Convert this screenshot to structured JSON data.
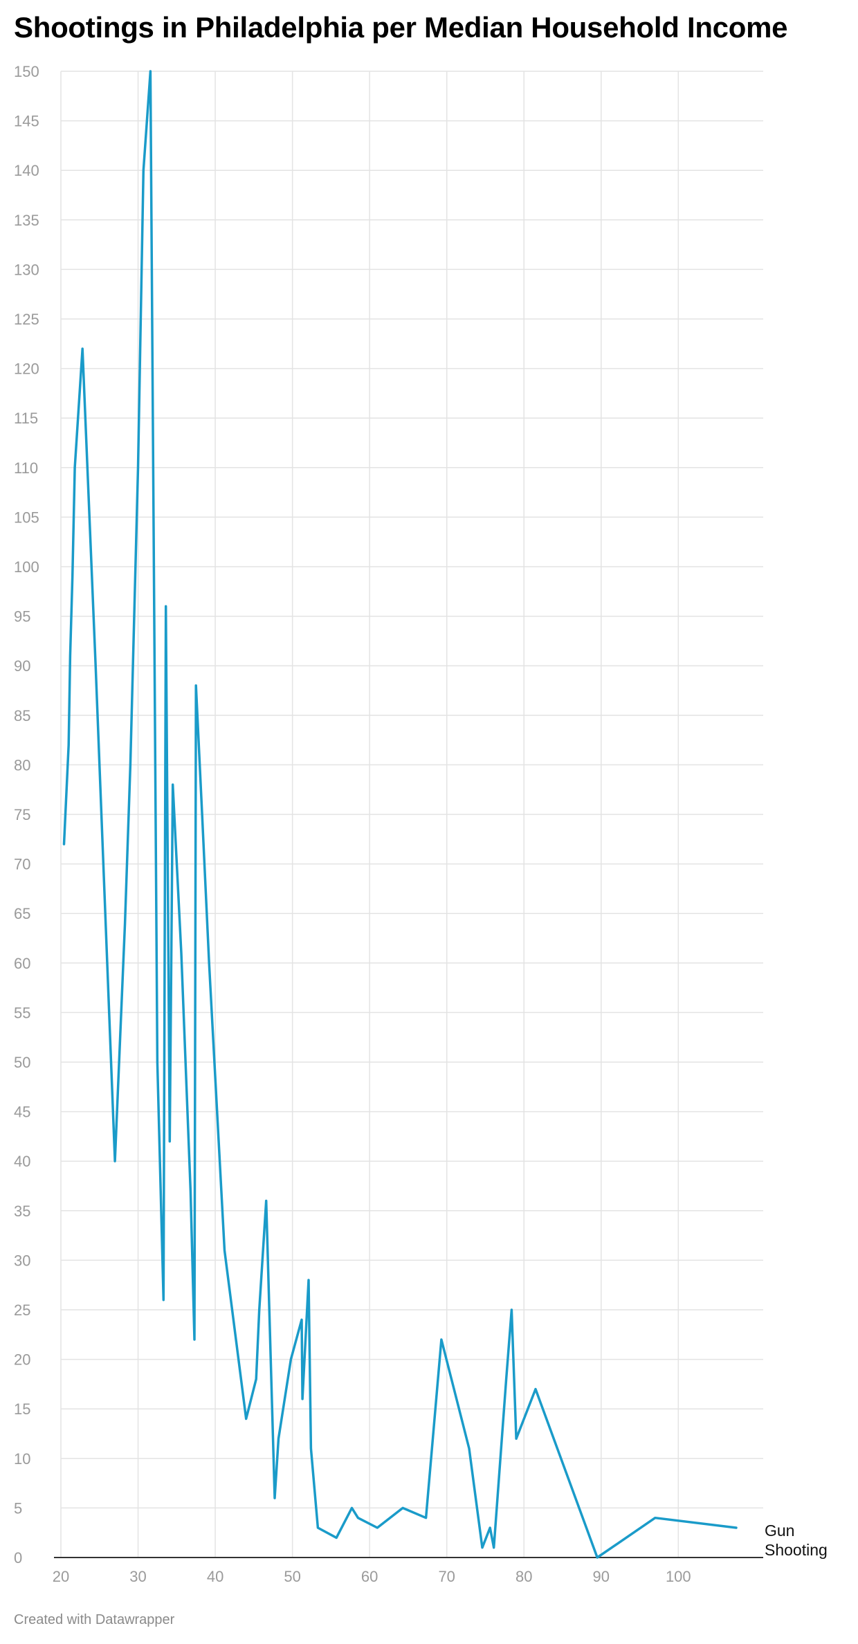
{
  "title": "Shootings in Philadelphia per Median Household Income",
  "footer": "Created with Datawrapper",
  "colors": {
    "line": "#1a9bc9",
    "grid": "#e3e3e3",
    "axis": "#333333",
    "tick_text": "#9a9a9a"
  },
  "chart_data": {
    "type": "line",
    "xlim": [
      20,
      111
    ],
    "ylim": [
      0,
      150
    ],
    "x_ticks": [
      20,
      30,
      40,
      50,
      60,
      70,
      80,
      90,
      100
    ],
    "y_ticks": [
      0,
      5,
      10,
      15,
      20,
      25,
      30,
      35,
      40,
      45,
      50,
      55,
      60,
      65,
      70,
      75,
      80,
      85,
      90,
      95,
      100,
      105,
      110,
      115,
      120,
      125,
      130,
      135,
      140,
      145,
      150
    ],
    "grid": true,
    "series": [
      {
        "name": "Gun Shooting",
        "x": [
          20.4,
          21,
          21.2,
          21.5,
          21.8,
          22.8,
          24.5,
          27,
          28.3,
          29,
          30,
          30.7,
          31.6,
          32.5,
          33.3,
          33.6,
          34.1,
          34.5,
          35.6,
          36.8,
          37.3,
          37.5,
          38.3,
          39.2,
          41.2,
          44,
          45.3,
          45.7,
          46.6,
          47.7,
          48.2,
          49.8,
          51.2,
          51.3,
          52.1,
          52.4,
          53.3,
          55.7,
          57.7,
          58.5,
          61,
          64.3,
          67.3,
          69.3,
          72.9,
          74.6,
          75.6,
          76.1,
          77.7,
          78.4,
          79,
          81.5,
          89.5,
          97,
          107.5
        ],
        "y": [
          72,
          82,
          91,
          99,
          110,
          122,
          90,
          40,
          64,
          80,
          110,
          140,
          150,
          50,
          26,
          96,
          42,
          78,
          61,
          37,
          22,
          88,
          75,
          60,
          31,
          14,
          18,
          25,
          36,
          6,
          12,
          20,
          24,
          16,
          28,
          11,
          3,
          2,
          5,
          4,
          3,
          5,
          4,
          22,
          11,
          1,
          3,
          1,
          18,
          25,
          12,
          17,
          0,
          4,
          3
        ]
      }
    ]
  }
}
